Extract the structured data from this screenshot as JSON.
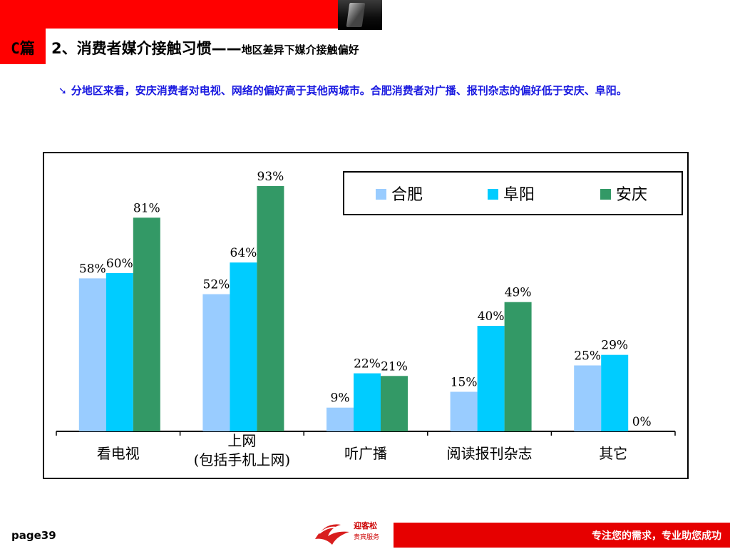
{
  "header": {
    "section_tag": "C篇",
    "title_main": "2、消费者媒介接触习惯——",
    "title_sub": "地区差异下媒介接触偏好"
  },
  "bullet": {
    "icon": "arrow-bullet-icon",
    "text": "分地区来看，安庆消费者对电视、网络的偏好高于其他两城市。合肥消费者对广播、报刊杂志的偏好低于安庆、阜阳。"
  },
  "chart_data": {
    "type": "bar",
    "categories": [
      "看电视",
      "上网\n(包括手机上网)",
      "听广播",
      "阅读报刊杂志",
      "其它"
    ],
    "series": [
      {
        "name": "合肥",
        "color": "#99ccff",
        "values": [
          58,
          52,
          9,
          15,
          25
        ],
        "labels": [
          "58%",
          "52%",
          "9%",
          "15%",
          "25%"
        ]
      },
      {
        "name": "阜阳",
        "color": "#00ccff",
        "values": [
          60,
          64,
          22,
          40,
          29
        ],
        "labels": [
          "60%",
          "64%",
          "22%",
          "40%",
          "29%"
        ]
      },
      {
        "name": "安庆",
        "color": "#339966",
        "values": [
          81,
          93,
          21,
          49,
          0
        ],
        "labels": [
          "81%",
          "93%",
          "21%",
          "49%",
          "0%"
        ]
      }
    ],
    "ylim": [
      0,
      100
    ],
    "grid": false,
    "legend_position": "top-right"
  },
  "footer": {
    "page_label": "page39",
    "logo_icon": "company-logo-icon",
    "logo_name": "迎客松",
    "logo_tagline": "贵宾服务",
    "slogan": "专注您的需求，专业助您成功"
  }
}
